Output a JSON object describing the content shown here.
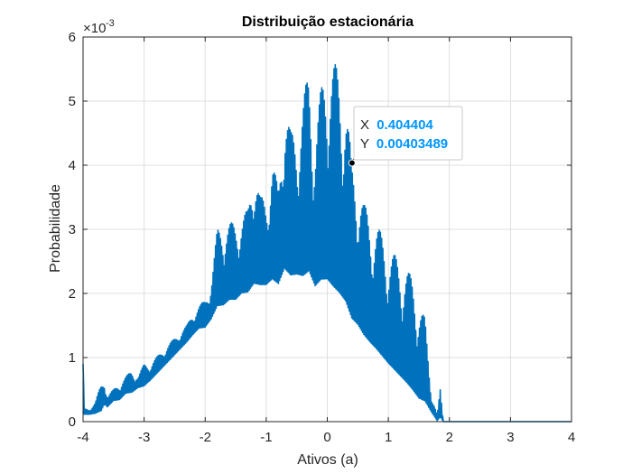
{
  "chart_data": {
    "type": "line",
    "title": "Distribuição estacionária",
    "xlabel": "Ativos (a)",
    "ylabel": "Probabilidade",
    "exponent_label": {
      "base": "×10",
      "exp": "-3"
    },
    "xlim": [
      -4,
      4
    ],
    "ylim": [
      0,
      0.006
    ],
    "xticks": [
      -4,
      -3,
      -2,
      -1,
      0,
      1,
      2,
      3,
      4
    ],
    "yticks": [
      0,
      0.001,
      0.002,
      0.003,
      0.004,
      0.005,
      0.006
    ],
    "xtick_labels": [
      "-4",
      "-3",
      "-2",
      "-1",
      "0",
      "1",
      "2",
      "3",
      "4"
    ],
    "ytick_labels": [
      "0",
      "1",
      "2",
      "3",
      "4",
      "5",
      "6"
    ],
    "grid": true,
    "line_color": "#0072BD",
    "series": [
      {
        "x": [
          -4.0,
          -3.98,
          -3.9,
          -3.8,
          -3.7,
          -3.65,
          -3.6,
          -3.5,
          -3.4,
          -3.3,
          -3.2,
          -3.1,
          -3.0,
          -2.9,
          -2.8,
          -2.7,
          -2.6,
          -2.5,
          -2.4,
          -2.3,
          -2.2,
          -2.1,
          -2.0,
          -1.9,
          -1.8,
          -1.7,
          -1.6,
          -1.5,
          -1.4,
          -1.3,
          -1.2,
          -1.1,
          -1.0,
          -0.9,
          -0.8,
          -0.7,
          -0.6,
          -0.5,
          -0.4,
          -0.3,
          -0.2,
          -0.1,
          0.0,
          0.1,
          0.2,
          0.3,
          0.4,
          0.5,
          0.6,
          0.7,
          0.8,
          0.9,
          1.0,
          1.1,
          1.2,
          1.3,
          1.4,
          1.5,
          1.6,
          1.7,
          1.8,
          1.85,
          1.9,
          2.0,
          2.5,
          3.0,
          3.5,
          4.0
        ],
        "lower": [
          0.0009,
          0.0001,
          0.0001,
          0.0001,
          0.0001,
          0.0002,
          0.0002,
          0.0003,
          0.0003,
          0.0004,
          0.0004,
          0.0005,
          0.0005,
          0.0006,
          0.0007,
          0.0008,
          0.0009,
          0.001,
          0.0011,
          0.0012,
          0.0013,
          0.0014,
          0.0014,
          0.0015,
          0.0016,
          0.0016,
          0.0017,
          0.0017,
          0.0018,
          0.0018,
          0.0018,
          0.0019,
          0.0019,
          0.0019,
          0.0019,
          0.0019,
          0.0019,
          0.0019,
          0.0018,
          0.0018,
          0.0017,
          0.0017,
          0.0016,
          0.0015,
          0.0014,
          0.0013,
          0.0012,
          0.0011,
          0.001,
          0.0009,
          0.0008,
          0.0007,
          0.0006,
          0.0005,
          0.0004,
          0.0003,
          0.0002,
          0.0001,
          0.0001,
          0.0001,
          0.0,
          0.0,
          0.0,
          0.0,
          0.0,
          0.0,
          0.0,
          0.0
        ],
        "upper": [
          0.0009,
          0.0002,
          0.0002,
          0.0003,
          0.0006,
          0.0007,
          0.0004,
          0.0005,
          0.0006,
          0.0007,
          0.0008,
          0.0007,
          0.0009,
          0.0009,
          0.001,
          0.0011,
          0.0012,
          0.0013,
          0.0014,
          0.0015,
          0.0017,
          0.0018,
          0.0019,
          0.0022,
          0.003,
          0.0031,
          0.0031,
          0.0031,
          0.0032,
          0.0033,
          0.0042,
          0.0035,
          0.0035,
          0.0041,
          0.0036,
          0.0052,
          0.0045,
          0.0046,
          0.005,
          0.0055,
          0.0045,
          0.0052,
          0.0058,
          0.0056,
          0.0055,
          0.0052,
          0.004,
          0.0039,
          0.0034,
          0.0032,
          0.0031,
          0.0029,
          0.0027,
          0.0026,
          0.0025,
          0.0024,
          0.0022,
          0.0019,
          0.0016,
          0.0005,
          0.0001,
          0.0005,
          0.0,
          0.0,
          0.0,
          0.0,
          0.0,
          0.0
        ]
      }
    ],
    "datatip": {
      "x": 0.404404,
      "y": 0.00403489,
      "x_label": "X",
      "y_label": "Y",
      "x_text": "0.404404",
      "y_text": "0.00403489"
    }
  }
}
